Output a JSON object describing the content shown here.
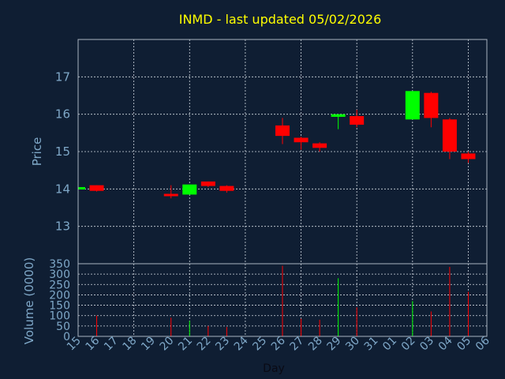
{
  "chart_data": {
    "type": "candlestick",
    "title": "INMD - last updated 05/02/2026",
    "xlabel": "Day",
    "ylabel_price": "Price",
    "ylabel_volume": "Volume (0000)",
    "price_ylim": [
      12.0,
      18.0
    ],
    "price_ticks": [
      13,
      14,
      15,
      16,
      17
    ],
    "volume_ylim": [
      0,
      350
    ],
    "volume_ticks": [
      0,
      50,
      100,
      150,
      200,
      250,
      300,
      350
    ],
    "x_ticks": [
      "15",
      "16",
      "17",
      "18",
      "19",
      "20",
      "21",
      "22",
      "23",
      "24",
      "25",
      "26",
      "27",
      "28",
      "29",
      "30",
      "31",
      "01",
      "02",
      "03",
      "04",
      "05",
      "06"
    ],
    "grid": true,
    "colors": {
      "up": "#00ff00",
      "down": "#ff0000",
      "title": "#ffff00",
      "axis_text": "#7fa8c8",
      "background": "#0f1e33"
    },
    "candles": [
      {
        "x": 15.0,
        "open": 14.0,
        "high": 14.05,
        "low": 13.99,
        "close": 14.05,
        "volume": 0
      },
      {
        "x": 16.0,
        "open": 14.1,
        "high": 14.1,
        "low": 13.93,
        "close": 13.95,
        "volume": 100
      },
      {
        "x": 20.0,
        "open": 13.87,
        "high": 14.1,
        "low": 13.75,
        "close": 13.83,
        "volume": 90
      },
      {
        "x": 21.0,
        "open": 13.85,
        "high": 14.12,
        "low": 13.85,
        "close": 14.12,
        "volume": 75
      },
      {
        "x": 22.0,
        "open": 14.2,
        "high": 14.2,
        "low": 14.05,
        "close": 14.08,
        "volume": 50
      },
      {
        "x": 23.0,
        "open": 14.08,
        "high": 14.1,
        "low": 13.9,
        "close": 13.95,
        "volume": 45
      },
      {
        "x": 26.0,
        "open": 15.7,
        "high": 15.9,
        "low": 15.2,
        "close": 15.42,
        "volume": 340
      },
      {
        "x": 27.0,
        "open": 15.37,
        "high": 15.4,
        "low": 15.05,
        "close": 15.25,
        "volume": 85
      },
      {
        "x": 28.0,
        "open": 15.22,
        "high": 15.25,
        "low": 15.0,
        "close": 15.1,
        "volume": 80
      },
      {
        "x": 29.0,
        "open": 15.93,
        "high": 16.0,
        "low": 15.6,
        "close": 16.0,
        "volume": 280
      },
      {
        "x": 30.0,
        "open": 15.95,
        "high": 16.12,
        "low": 15.65,
        "close": 15.72,
        "volume": 140
      },
      {
        "x": 33.0,
        "open": 15.86,
        "high": 16.62,
        "low": 15.86,
        "close": 16.62,
        "volume": 170
      },
      {
        "x": 34.0,
        "open": 16.57,
        "high": 16.6,
        "low": 15.65,
        "close": 15.9,
        "volume": 120
      },
      {
        "x": 35.0,
        "open": 15.86,
        "high": 15.9,
        "low": 14.8,
        "close": 15.0,
        "volume": 335
      },
      {
        "x": 36.0,
        "open": 14.95,
        "high": 15.0,
        "low": 14.7,
        "close": 14.8,
        "volume": 215
      }
    ]
  }
}
